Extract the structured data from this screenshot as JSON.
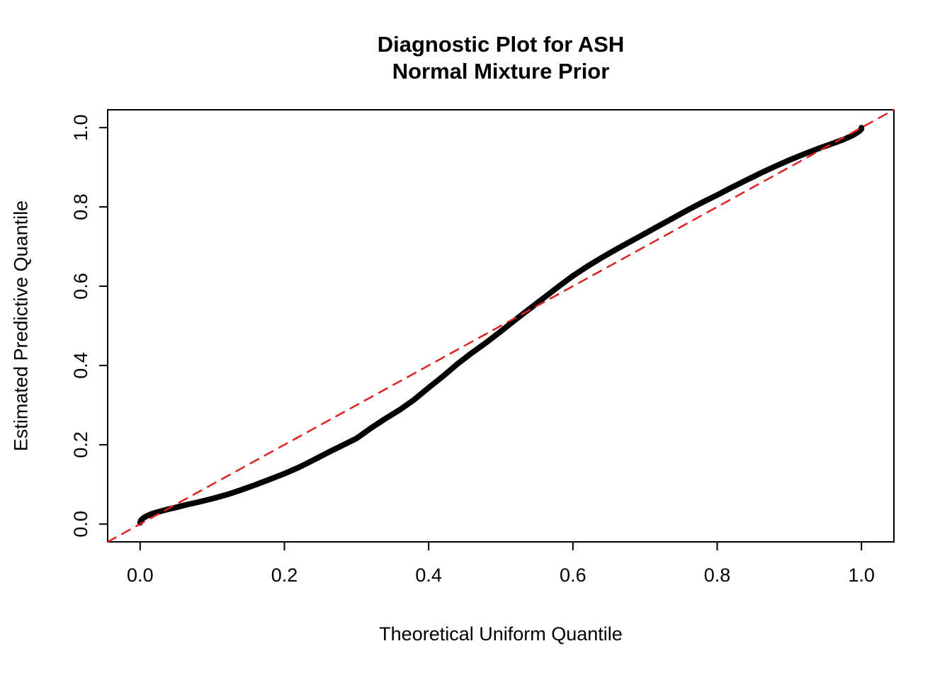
{
  "title": {
    "line1": "Diagnostic Plot for ASH",
    "line2": "Normal Mixture Prior"
  },
  "colors": {
    "curve": "#000000",
    "reference_line": "#e02020",
    "background": "#ffffff",
    "axis": "#000000"
  },
  "chart_data": {
    "type": "line",
    "title": "Diagnostic Plot for ASH\nNormal Mixture Prior",
    "xlabel": "Theoretical Uniform Quantile",
    "ylabel": "Estimated Predictive Quantile",
    "xlim": [
      -0.045,
      1.045
    ],
    "ylim": [
      -0.045,
      1.045
    ],
    "grid": false,
    "legend": null,
    "xticks": [
      0.0,
      0.2,
      0.4,
      0.6,
      0.8,
      1.0
    ],
    "yticks": [
      0.0,
      0.2,
      0.4,
      0.6,
      0.8,
      1.0
    ],
    "xtick_labels": [
      "0.0",
      "0.2",
      "0.4",
      "0.6",
      "0.8",
      "1.0"
    ],
    "ytick_labels": [
      "0.0",
      "0.2",
      "0.4",
      "0.6",
      "0.8",
      "1.0"
    ],
    "series": [
      {
        "name": "estimated-predictive-quantile-curve",
        "color": "#000000",
        "style": "solid",
        "width": 8,
        "points": [
          [
            0.0,
            0.003
          ],
          [
            0.001,
            0.009
          ],
          [
            0.003,
            0.013
          ],
          [
            0.006,
            0.017
          ],
          [
            0.01,
            0.021
          ],
          [
            0.015,
            0.025
          ],
          [
            0.022,
            0.029
          ],
          [
            0.03,
            0.033
          ],
          [
            0.04,
            0.038
          ],
          [
            0.052,
            0.043
          ],
          [
            0.065,
            0.049
          ],
          [
            0.08,
            0.055
          ],
          [
            0.1,
            0.064
          ],
          [
            0.12,
            0.074
          ],
          [
            0.14,
            0.086
          ],
          [
            0.16,
            0.099
          ],
          [
            0.18,
            0.113
          ],
          [
            0.2,
            0.127
          ],
          [
            0.22,
            0.143
          ],
          [
            0.24,
            0.161
          ],
          [
            0.26,
            0.18
          ],
          [
            0.28,
            0.198
          ],
          [
            0.3,
            0.216
          ],
          [
            0.32,
            0.242
          ],
          [
            0.34,
            0.266
          ],
          [
            0.36,
            0.288
          ],
          [
            0.38,
            0.314
          ],
          [
            0.4,
            0.344
          ],
          [
            0.42,
            0.373
          ],
          [
            0.44,
            0.404
          ],
          [
            0.46,
            0.432
          ],
          [
            0.48,
            0.458
          ],
          [
            0.5,
            0.486
          ],
          [
            0.52,
            0.515
          ],
          [
            0.54,
            0.543
          ],
          [
            0.56,
            0.571
          ],
          [
            0.58,
            0.599
          ],
          [
            0.6,
            0.626
          ],
          [
            0.62,
            0.65
          ],
          [
            0.64,
            0.672
          ],
          [
            0.66,
            0.693
          ],
          [
            0.68,
            0.713
          ],
          [
            0.7,
            0.733
          ],
          [
            0.72,
            0.753
          ],
          [
            0.74,
            0.773
          ],
          [
            0.76,
            0.793
          ],
          [
            0.78,
            0.812
          ],
          [
            0.8,
            0.83
          ],
          [
            0.82,
            0.849
          ],
          [
            0.84,
            0.867
          ],
          [
            0.86,
            0.885
          ],
          [
            0.88,
            0.902
          ],
          [
            0.9,
            0.918
          ],
          [
            0.92,
            0.933
          ],
          [
            0.94,
            0.947
          ],
          [
            0.96,
            0.96
          ],
          [
            0.975,
            0.97
          ],
          [
            0.985,
            0.978
          ],
          [
            0.992,
            0.985
          ],
          [
            0.997,
            0.991
          ],
          [
            1.0,
            0.997
          ],
          [
            1.0,
            1.0
          ]
        ]
      },
      {
        "name": "identity-reference-line",
        "color": "#e02020",
        "style": "dashed",
        "width": 2.5,
        "points": [
          [
            -0.045,
            -0.045
          ],
          [
            1.045,
            1.045
          ]
        ]
      }
    ]
  }
}
